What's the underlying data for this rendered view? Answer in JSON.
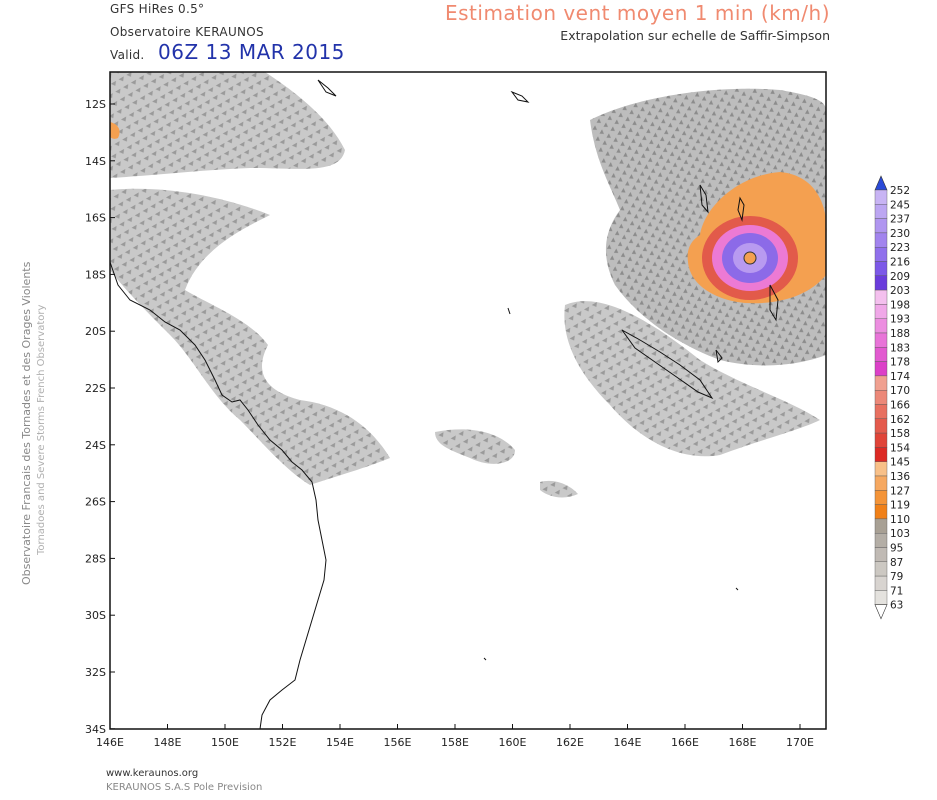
{
  "header": {
    "model": "GFS HiRes 0.5°",
    "observatory": "Observatoire KERAUNOS",
    "valid_label": "Valid.",
    "valid_time": "06Z 13 MAR 2015",
    "title": "Estimation vent moyen 1 min (km/h)",
    "subtitle": "Extrapolation sur echelle de Saffir-Simpson"
  },
  "sidebar": {
    "line1": "Observatoire Francais des Tornades et des Orages Violents",
    "line2": "Tornadoes and Severe Storms French Observatory"
  },
  "footer": {
    "url": "www.keraunos.org",
    "company": "KERAUNOS S.A.S Pole Prevision"
  },
  "map": {
    "lat_labels": [
      "12S",
      "14S",
      "16S",
      "18S",
      "20S",
      "22S",
      "24S",
      "26S",
      "28S",
      "30S",
      "32S",
      "34S"
    ],
    "lon_labels": [
      "146E",
      "148E",
      "150E",
      "152E",
      "154E",
      "156E",
      "158E",
      "160E",
      "162E",
      "164E",
      "166E",
      "168E",
      "170E"
    ]
  },
  "legend": {
    "values": [
      "252",
      "245",
      "237",
      "230",
      "223",
      "216",
      "209",
      "203",
      "198",
      "193",
      "188",
      "183",
      "178",
      "174",
      "170",
      "166",
      "162",
      "158",
      "154",
      "145",
      "136",
      "127",
      "119",
      "110",
      "103",
      "95",
      "87",
      "79",
      "71",
      "63"
    ],
    "colors": [
      "#c8b4f4",
      "#bca6f2",
      "#b096f0",
      "#a284ee",
      "#9070ec",
      "#7c58e8",
      "#6a3cdc",
      "#f4c0ee",
      "#f0a8e8",
      "#ec8ee0",
      "#e874d8",
      "#e25ad0",
      "#dc40c8",
      "#f0a090",
      "#ec8878",
      "#e87060",
      "#e45a4c",
      "#e04438",
      "#dc2a24",
      "#f8c088",
      "#f6a860",
      "#f49438",
      "#f08018",
      "#a8a094",
      "#b4aea6",
      "#c0bab4",
      "#ccc8c2",
      "#d8d4d0",
      "#e4e2de"
    ]
  }
}
